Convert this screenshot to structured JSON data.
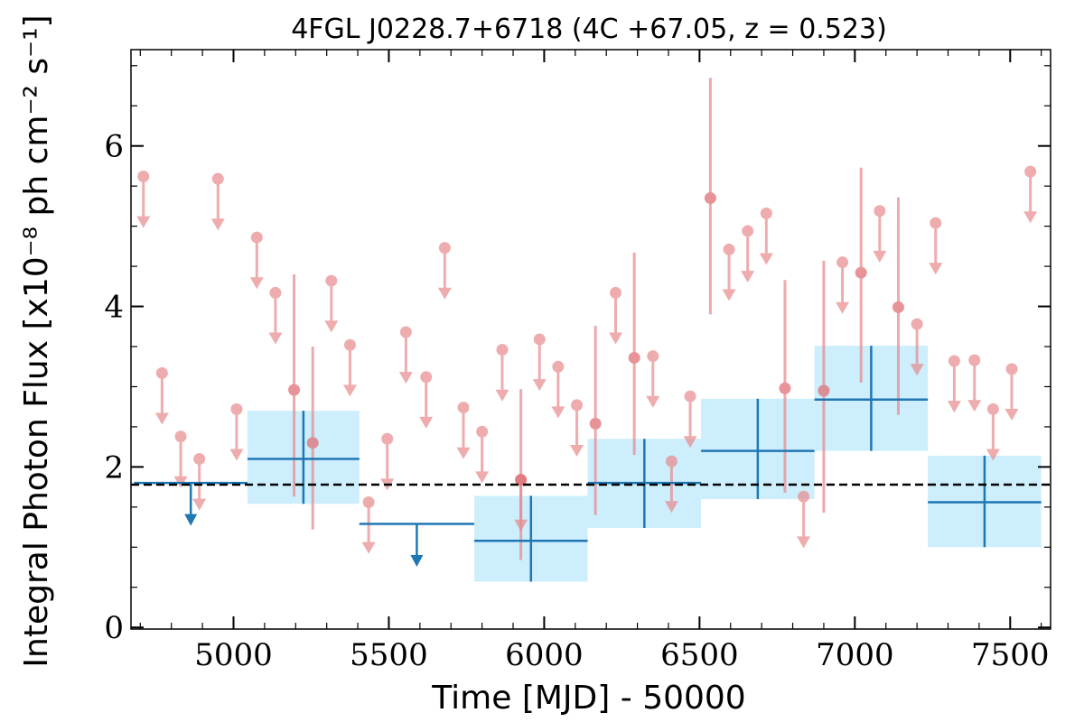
{
  "chart_data": {
    "type": "scatter",
    "title": "4FGL J0228.7+6718 (4C +67.05, z = 0.523)",
    "xlabel": "Time [MJD] - 50000",
    "ylabel": "Integral Photon Flux [x10⁻⁸ ph cm⁻² s⁻¹]",
    "xlim": [
      4670,
      7630
    ],
    "ylim": [
      -0.02,
      7.2
    ],
    "xticks": [
      5000,
      5500,
      6000,
      6500,
      7000,
      7500
    ],
    "yticks": [
      0,
      2,
      4,
      6
    ],
    "grid": false,
    "average_flux": 1.78,
    "colors": {
      "short_bins": "#e8898c",
      "long_bins": "#1f77b4",
      "long_bins_error_box": "#cdeefc",
      "average_line": "#000000"
    },
    "short_bin_upper_limits": [
      {
        "x": 4710,
        "y": 5.62
      },
      {
        "x": 4770,
        "y": 3.17
      },
      {
        "x": 4830,
        "y": 2.38
      },
      {
        "x": 4890,
        "y": 2.1
      },
      {
        "x": 4950,
        "y": 5.59
      },
      {
        "x": 5010,
        "y": 2.72
      },
      {
        "x": 5075,
        "y": 4.86
      },
      {
        "x": 5135,
        "y": 4.17
      },
      {
        "x": 5315,
        "y": 4.32
      },
      {
        "x": 5375,
        "y": 3.52
      },
      {
        "x": 5435,
        "y": 1.56
      },
      {
        "x": 5495,
        "y": 2.35
      },
      {
        "x": 5555,
        "y": 3.68
      },
      {
        "x": 5620,
        "y": 3.12
      },
      {
        "x": 5680,
        "y": 4.73
      },
      {
        "x": 5740,
        "y": 2.74
      },
      {
        "x": 5800,
        "y": 2.44
      },
      {
        "x": 5865,
        "y": 3.46
      },
      {
        "x": 5925,
        "y": 1.84
      },
      {
        "x": 5985,
        "y": 3.59
      },
      {
        "x": 6045,
        "y": 3.25
      },
      {
        "x": 6105,
        "y": 2.77
      },
      {
        "x": 6230,
        "y": 4.17
      },
      {
        "x": 6350,
        "y": 3.38
      },
      {
        "x": 6410,
        "y": 2.07
      },
      {
        "x": 6470,
        "y": 2.88
      },
      {
        "x": 6595,
        "y": 4.71
      },
      {
        "x": 6655,
        "y": 4.94
      },
      {
        "x": 6715,
        "y": 5.16
      },
      {
        "x": 6835,
        "y": 1.63
      },
      {
        "x": 6960,
        "y": 4.55
      },
      {
        "x": 7080,
        "y": 5.19
      },
      {
        "x": 7200,
        "y": 3.78
      },
      {
        "x": 7260,
        "y": 5.04
      },
      {
        "x": 7320,
        "y": 3.32
      },
      {
        "x": 7385,
        "y": 3.33
      },
      {
        "x": 7445,
        "y": 2.72
      },
      {
        "x": 7505,
        "y": 3.22
      },
      {
        "x": 7565,
        "y": 5.68
      }
    ],
    "short_bin_detections": [
      {
        "x": 5195,
        "y": 2.96,
        "ylo": 1.63,
        "yhi": 4.4
      },
      {
        "x": 5255,
        "y": 2.3,
        "ylo": 1.22,
        "yhi": 3.5
      },
      {
        "x": 5925,
        "y": 1.84,
        "ylo": 0.84,
        "yhi": 2.97
      },
      {
        "x": 6165,
        "y": 2.54,
        "ylo": 1.4,
        "yhi": 3.76
      },
      {
        "x": 6290,
        "y": 3.36,
        "ylo": 2.15,
        "yhi": 4.67
      },
      {
        "x": 6535,
        "y": 5.35,
        "ylo": 3.9,
        "yhi": 6.85
      },
      {
        "x": 6775,
        "y": 2.98,
        "ylo": 1.68,
        "yhi": 4.33
      },
      {
        "x": 6900,
        "y": 2.95,
        "ylo": 1.43,
        "yhi": 4.57
      },
      {
        "x": 7020,
        "y": 4.42,
        "ylo": 3.05,
        "yhi": 5.73
      },
      {
        "x": 7140,
        "y": 3.99,
        "ylo": 2.65,
        "yhi": 5.36
      }
    ],
    "long_bin_upper_limits": [
      {
        "x0": 4680,
        "x1": 5045,
        "y": 1.8
      },
      {
        "x0": 5405,
        "x1": 5775,
        "y": 1.29
      }
    ],
    "long_bin_detections": [
      {
        "x0": 5045,
        "x1": 5405,
        "y": 2.1,
        "ylo": 1.54,
        "yhi": 2.7
      },
      {
        "x0": 5775,
        "x1": 6140,
        "y": 1.08,
        "ylo": 0.57,
        "yhi": 1.64
      },
      {
        "x0": 6140,
        "x1": 6505,
        "y": 1.8,
        "ylo": 1.24,
        "yhi": 2.35
      },
      {
        "x0": 6505,
        "x1": 6870,
        "y": 2.2,
        "ylo": 1.6,
        "yhi": 2.85
      },
      {
        "x0": 6870,
        "x1": 7235,
        "y": 2.84,
        "ylo": 2.2,
        "yhi": 3.51
      },
      {
        "x0": 7235,
        "x1": 7600,
        "y": 1.56,
        "ylo": 1.0,
        "yhi": 2.14
      }
    ]
  }
}
